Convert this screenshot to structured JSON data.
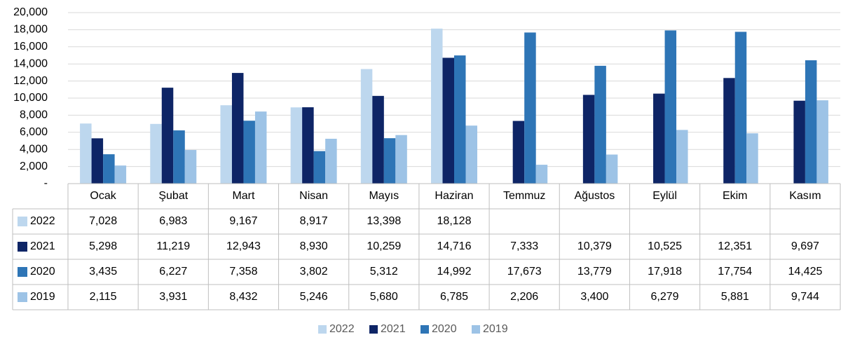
{
  "chart_data": {
    "type": "bar",
    "categories": [
      "Ocak",
      "Şubat",
      "Mart",
      "Nisan",
      "Mayıs",
      "Haziran",
      "Temmuz",
      "Ağustos",
      "Eylül",
      "Ekim",
      "Kasım"
    ],
    "series": [
      {
        "name": "2022",
        "color": "#bdd7ee",
        "values": [
          7028,
          6983,
          9167,
          8917,
          13398,
          18128,
          null,
          null,
          null,
          null,
          null
        ],
        "value_labels": [
          "7,028",
          "6,983",
          "9,167",
          "8,917",
          "13,398",
          "18,128",
          null,
          null,
          null,
          null,
          null
        ]
      },
      {
        "name": "2021",
        "color": "#0e2566",
        "values": [
          5298,
          11219,
          12943,
          8930,
          10259,
          14716,
          7333,
          10379,
          10525,
          12351,
          9697
        ],
        "value_labels": [
          "5,298",
          "11,219",
          "12,943",
          "8,930",
          "10,259",
          "14,716",
          "7,333",
          "10,379",
          "10,525",
          "12,351",
          "9,697"
        ]
      },
      {
        "name": "2020",
        "color": "#2e75b6",
        "values": [
          3435,
          6227,
          7358,
          3802,
          5312,
          14992,
          17673,
          13779,
          17918,
          17754,
          14425
        ],
        "value_labels": [
          "3,435",
          "6,227",
          "7,358",
          "3,802",
          "5,312",
          "14,992",
          "17,673",
          "13,779",
          "17,918",
          "17,754",
          "14,425"
        ]
      },
      {
        "name": "2019",
        "color": "#9dc3e6",
        "values": [
          2115,
          3931,
          8432,
          5246,
          5680,
          6785,
          2206,
          3400,
          6279,
          5881,
          9744
        ],
        "value_labels": [
          "2,115",
          "3,931",
          "8,432",
          "5,246",
          "5,680",
          "6,785",
          "2,206",
          "3,400",
          "6,279",
          "5,881",
          "9,744"
        ]
      }
    ],
    "ylim": [
      0,
      20000
    ],
    "yticks": [
      {
        "value": 0,
        "label": "-"
      },
      {
        "value": 2000,
        "label": "2,000"
      },
      {
        "value": 4000,
        "label": "4,000"
      },
      {
        "value": 6000,
        "label": "6,000"
      },
      {
        "value": 8000,
        "label": "8,000"
      },
      {
        "value": 10000,
        "label": "10,000"
      },
      {
        "value": 12000,
        "label": "12,000"
      },
      {
        "value": 14000,
        "label": "14,000"
      },
      {
        "value": 16000,
        "label": "16,000"
      },
      {
        "value": 18000,
        "label": "18,000"
      },
      {
        "value": 20000,
        "label": "20,000"
      }
    ],
    "grid": true,
    "legend": "bottom"
  }
}
